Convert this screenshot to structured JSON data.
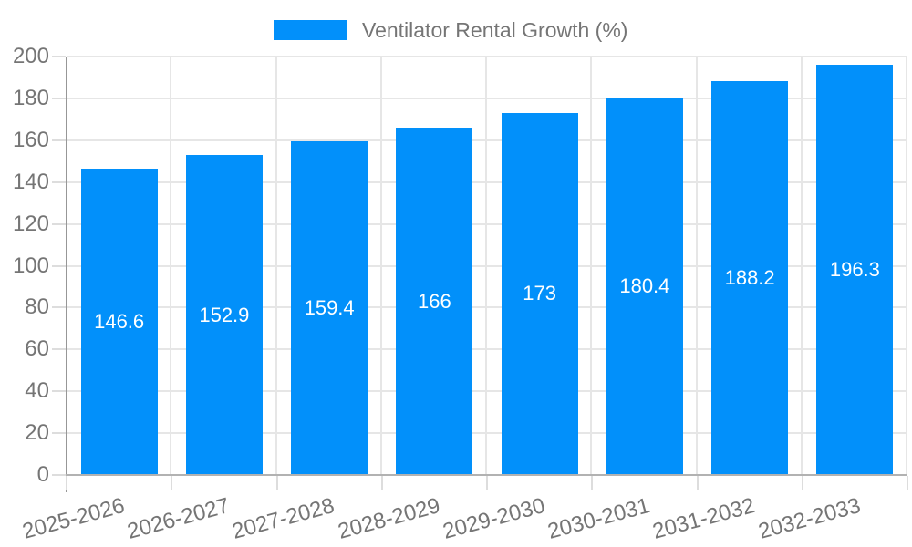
{
  "legend": {
    "label": "Ventilator Rental Growth (%)"
  },
  "colors": {
    "bar": "#0290fa",
    "legend_text": "#757575",
    "axis_label": "#757575",
    "value_label": "#ffffff",
    "gridline": "#e6e6e6",
    "tick": "#dddddd",
    "y_axis_line": "#979797",
    "x_axis_line": "#b2b2b2",
    "background": "#ffffff"
  },
  "chart_data": {
    "type": "bar",
    "title": "",
    "legend": "Ventilator Rental Growth (%)",
    "legend_position": "top-center",
    "categories": [
      "2025-2026",
      "2026-2027",
      "2027-2028",
      "2028-2029",
      "2029-2030",
      "2030-2031",
      "2031-2032",
      "2032-2033"
    ],
    "series": [
      {
        "name": "Ventilator Rental Growth (%)",
        "values": [
          146.6,
          152.9,
          159.4,
          166,
          173,
          180.4,
          188.2,
          196.3
        ],
        "value_labels": [
          "146.6",
          "152.9",
          "159.4",
          "166",
          "173",
          "180.4",
          "188.2",
          "196.3"
        ]
      }
    ],
    "xlabel": "",
    "ylabel": "",
    "ylim": [
      0,
      200
    ],
    "ytick_step": 20,
    "ytick_labels": [
      "0",
      "20",
      "40",
      "60",
      "80",
      "100",
      "120",
      "140",
      "160",
      "180",
      "200"
    ],
    "grid": true,
    "x_label_rotation_deg": -15,
    "value_labels_inside_bars": true
  }
}
